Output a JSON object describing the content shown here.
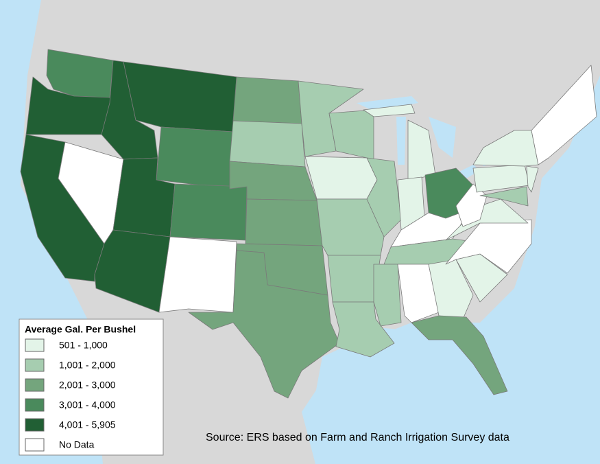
{
  "legend": {
    "title": "Average Gal. Per Bushel",
    "items": [
      {
        "label": "501 - 1,000",
        "color": "#e3f4e8"
      },
      {
        "label": "1,001 - 2,000",
        "color": "#a6cdb0"
      },
      {
        "label": "2,001 - 3,000",
        "color": "#74a57d"
      },
      {
        "label": "3,001 - 4,000",
        "color": "#4a8a5c"
      },
      {
        "label": "4,001 - 5,905",
        "color": "#215f34"
      },
      {
        "label": "No Data",
        "color": "#ffffff"
      }
    ]
  },
  "source": "Source: ERS based on Farm and Ranch Irrigation Survey data"
}
